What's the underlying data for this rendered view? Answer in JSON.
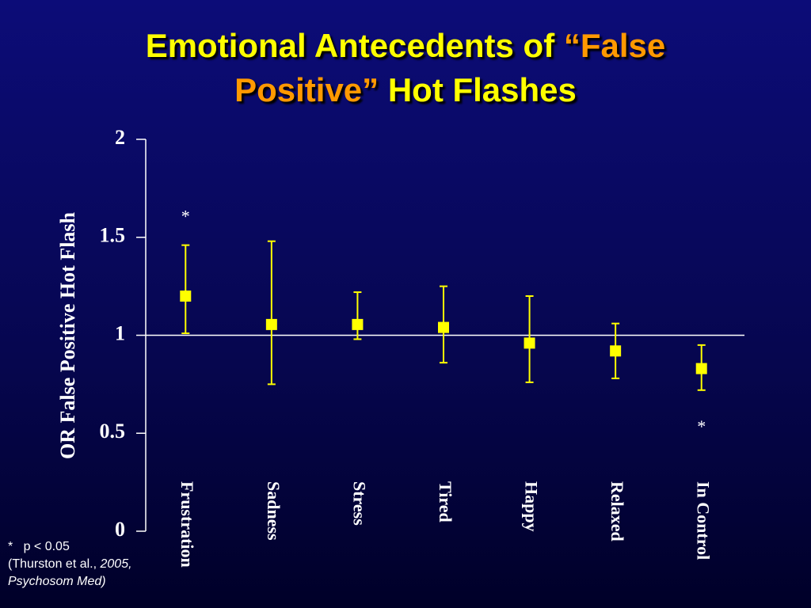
{
  "chart_data": {
    "type": "errorbar",
    "title_parts": [
      "Emotional Antecedents of",
      "“False",
      "Positive”",
      "Hot Flashes"
    ],
    "y_label": "OR False Positive Hot Flash",
    "categories": [
      "Frustration",
      "Sadness",
      "Stress",
      "Tired",
      "Happy",
      "Relaxed",
      "In Control"
    ],
    "series": [
      {
        "name": "OR",
        "color": "#ffff00",
        "values": [
          1.2,
          1.055,
          1.055,
          1.04,
          0.96,
          0.92,
          0.83
        ],
        "ci_low": [
          1.01,
          0.75,
          0.98,
          0.86,
          0.76,
          0.78,
          0.72
        ],
        "ci_high": [
          1.46,
          1.48,
          1.22,
          1.25,
          1.2,
          1.06,
          0.95
        ]
      }
    ],
    "significance_markers": [
      "*",
      null,
      null,
      null,
      null,
      null,
      "*"
    ],
    "reference_line": 1,
    "ylim": [
      0,
      2
    ],
    "yticks": [
      0,
      0.5,
      1,
      1.5,
      2
    ],
    "footnote": {
      "significance": "*   p < 0.05",
      "citation": "(Thurston et al.,",
      "citation_italic_1": "2005,",
      "citation_italic_2": "Psychosom Med)"
    }
  }
}
